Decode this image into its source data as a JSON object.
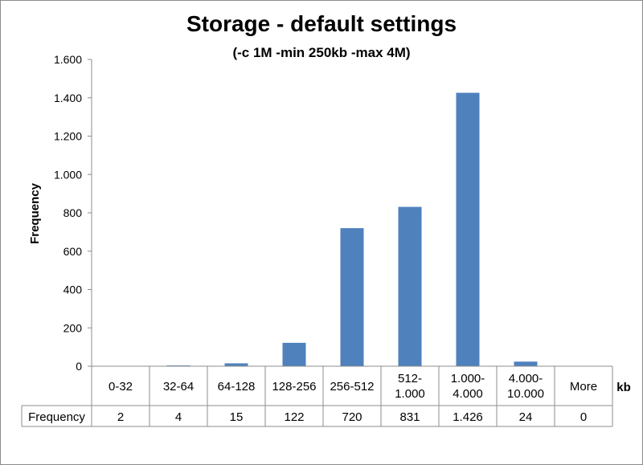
{
  "chart_data": {
    "type": "bar",
    "title": "Storage - default settings",
    "subtitle": "(-c 1M -min 250kb -max 4M)",
    "xlabel": "kb",
    "ylabel": "Frequency",
    "categories": [
      "0-32",
      "32-64",
      "64-128",
      "128-256",
      "256-512",
      "512-\n1.000",
      "1.000-\n4.000",
      "4.000-\n10.000",
      "More"
    ],
    "series": [
      {
        "name": "Frequency",
        "values": [
          2,
          4,
          15,
          122,
          720,
          831,
          1426,
          24,
          0
        ],
        "value_labels": [
          "2",
          "4",
          "15",
          "122",
          "720",
          "831",
          "1.426",
          "24",
          "0"
        ]
      }
    ],
    "ylim": [
      0,
      1600
    ],
    "yticks": [
      0,
      200,
      400,
      600,
      800,
      1000,
      1200,
      1400,
      1600
    ],
    "ytick_labels": [
      "0",
      "200",
      "400",
      "600",
      "800",
      "1.000",
      "1.200",
      "1.400",
      "1.600"
    ],
    "grid": false,
    "legend": "data-table",
    "colors": {
      "bar": "#4f81bd",
      "axis": "#8c8c8c"
    }
  }
}
